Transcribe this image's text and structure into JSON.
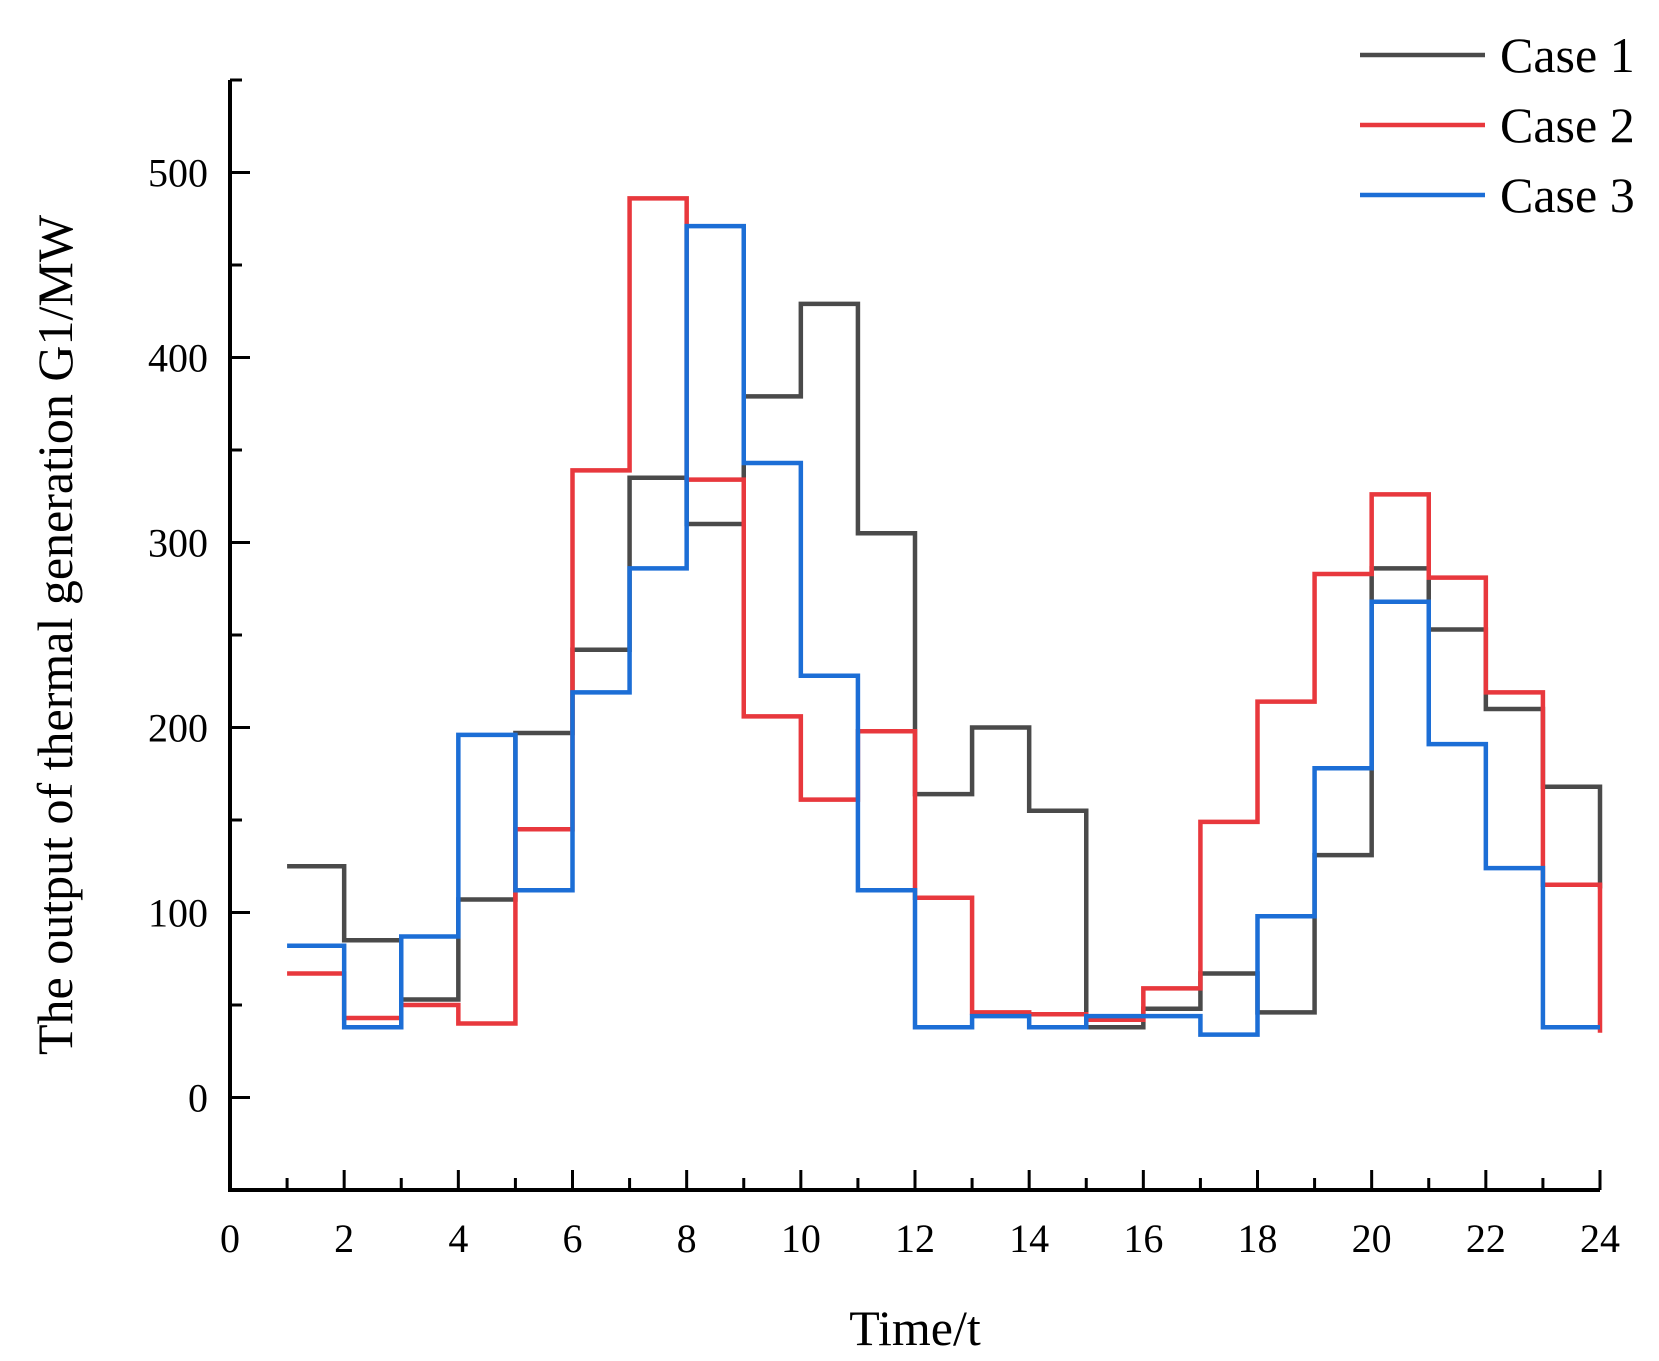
{
  "chart_data": {
    "type": "line",
    "step": "post",
    "title": "",
    "xlabel": "Time/t",
    "ylabel": "The output of thermal generation G1/MW",
    "xlim": [
      0,
      24
    ],
    "ylim": [
      -50,
      550
    ],
    "xticks": [
      0,
      2,
      4,
      6,
      8,
      10,
      12,
      14,
      16,
      18,
      20,
      22,
      24
    ],
    "yticks": [
      0,
      100,
      200,
      300,
      400,
      500
    ],
    "legend_position": "top-right",
    "x": [
      1,
      2,
      3,
      4,
      5,
      6,
      7,
      8,
      9,
      10,
      11,
      12,
      13,
      14,
      15,
      16,
      17,
      18,
      19,
      20,
      21,
      22,
      23,
      24
    ],
    "series": [
      {
        "name": "Case 1",
        "color": "#4a4a4a",
        "values": [
          125,
          85,
          53,
          107,
          197,
          242,
          335,
          310,
          379,
          429,
          305,
          164,
          200,
          155,
          38,
          48,
          67,
          46,
          131,
          286,
          253,
          210,
          168,
          113
        ]
      },
      {
        "name": "Case 2",
        "color": "#e8383d",
        "values": [
          67,
          43,
          50,
          40,
          145,
          339,
          486,
          334,
          206,
          161,
          198,
          108,
          46,
          45,
          42,
          59,
          149,
          214,
          283,
          326,
          281,
          219,
          115,
          35
        ]
      },
      {
        "name": "Case 3",
        "color": "#1c6ed6",
        "values": [
          82,
          38,
          87,
          196,
          112,
          219,
          286,
          471,
          343,
          228,
          112,
          38,
          44,
          38,
          44,
          44,
          34,
          98,
          178,
          268,
          191,
          124,
          38,
          38
        ]
      }
    ]
  }
}
